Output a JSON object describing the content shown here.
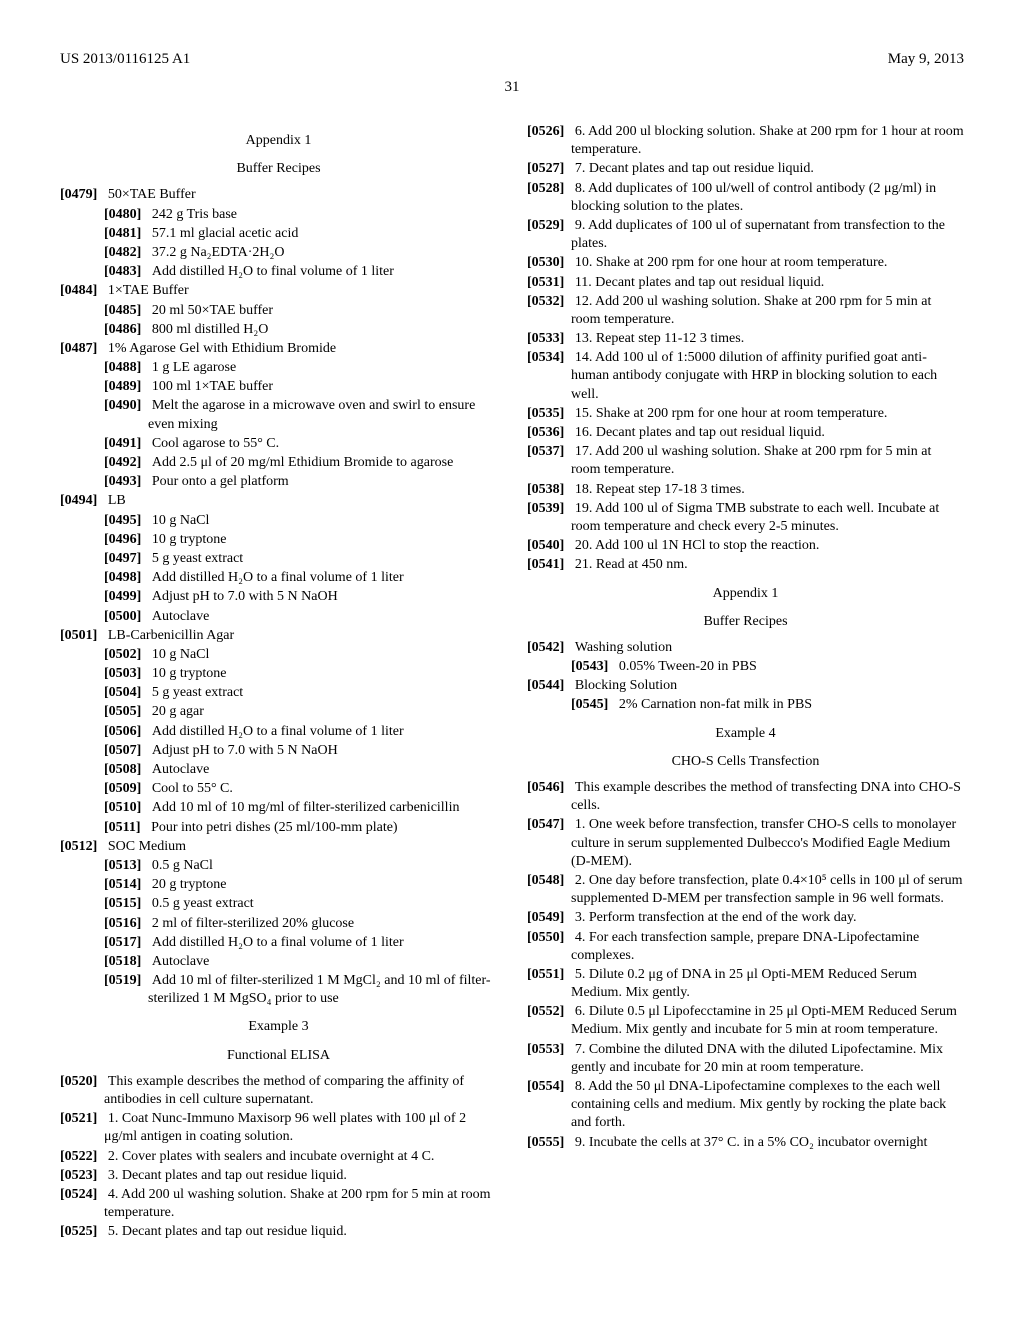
{
  "header": {
    "docNumber": "US 2013/0116125 A1",
    "date": "May 9, 2013",
    "pageNumber": "31"
  },
  "left": {
    "appendixTitle": "Appendix 1",
    "appendixSub": "Buffer Recipes",
    "p0479": {
      "ref": "[0479]",
      "text": "50×TAE Buffer"
    },
    "p0480": {
      "ref": "[0480]",
      "text": "242 g Tris base"
    },
    "p0481": {
      "ref": "[0481]",
      "text": "57.1 ml glacial acetic acid"
    },
    "p0482": {
      "ref": "[0482]",
      "text": "37.2 g Na₂EDTA·2H₂O"
    },
    "p0483": {
      "ref": "[0483]",
      "text": "Add distilled H₂O to final volume of 1 liter"
    },
    "p0484": {
      "ref": "[0484]",
      "text": "1×TAE Buffer"
    },
    "p0485": {
      "ref": "[0485]",
      "text": "20 ml 50×TAE buffer"
    },
    "p0486": {
      "ref": "[0486]",
      "text": "800 ml distilled H₂O"
    },
    "p0487": {
      "ref": "[0487]",
      "text": "1% Agarose Gel with Ethidium Bromide"
    },
    "p0488": {
      "ref": "[0488]",
      "text": "1 g LE agarose"
    },
    "p0489": {
      "ref": "[0489]",
      "text": "100 ml 1×TAE buffer"
    },
    "p0490": {
      "ref": "[0490]",
      "text": "Melt the agarose in a microwave oven and swirl to ensure even mixing"
    },
    "p0491": {
      "ref": "[0491]",
      "text": "Cool agarose to 55° C."
    },
    "p0492": {
      "ref": "[0492]",
      "text": "Add 2.5 μl of 20 mg/ml Ethidium Bromide to agarose"
    },
    "p0493": {
      "ref": "[0493]",
      "text": "Pour onto a gel platform"
    },
    "p0494": {
      "ref": "[0494]",
      "text": "LB"
    },
    "p0495": {
      "ref": "[0495]",
      "text": "10 g NaCl"
    },
    "p0496": {
      "ref": "[0496]",
      "text": "10 g tryptone"
    },
    "p0497": {
      "ref": "[0497]",
      "text": "5 g yeast extract"
    },
    "p0498": {
      "ref": "[0498]",
      "text": "Add distilled H₂O to a final volume of 1 liter"
    },
    "p0499": {
      "ref": "[0499]",
      "text": "Adjust pH to 7.0 with 5 N NaOH"
    },
    "p0500": {
      "ref": "[0500]",
      "text": "Autoclave"
    },
    "p0501": {
      "ref": "[0501]",
      "text": "LB-Carbenicillin Agar"
    },
    "p0502": {
      "ref": "[0502]",
      "text": "10 g NaCl"
    },
    "p0503": {
      "ref": "[0503]",
      "text": "10 g tryptone"
    },
    "p0504": {
      "ref": "[0504]",
      "text": "5 g yeast extract"
    },
    "p0505": {
      "ref": "[0505]",
      "text": "20 g agar"
    },
    "p0506": {
      "ref": "[0506]",
      "text": "Add distilled H₂O to a final volume of 1 liter"
    },
    "p0507": {
      "ref": "[0507]",
      "text": "Adjust pH to 7.0 with 5 N NaOH"
    },
    "p0508": {
      "ref": "[0508]",
      "text": "Autoclave"
    },
    "p0509": {
      "ref": "[0509]",
      "text": "Cool to 55° C."
    },
    "p0510": {
      "ref": "[0510]",
      "text": "Add 10 ml of 10 mg/ml of filter-sterilized carbenicillin"
    },
    "p0511": {
      "ref": "[0511]",
      "text": "Pour into petri dishes (25 ml/100-mm plate)"
    },
    "p0512": {
      "ref": "[0512]",
      "text": "SOC Medium"
    },
    "p0513": {
      "ref": "[0513]",
      "text": "0.5 g NaCl"
    },
    "p0514": {
      "ref": "[0514]",
      "text": "20 g tryptone"
    },
    "p0515": {
      "ref": "[0515]",
      "text": "0.5 g yeast extract"
    },
    "p0516": {
      "ref": "[0516]",
      "text": "2 ml of filter-sterilized 20% glucose"
    },
    "p0517": {
      "ref": "[0517]",
      "text": "Add distilled H₂O to a final volume of 1 liter"
    },
    "p0518": {
      "ref": "[0518]",
      "text": "Autoclave"
    },
    "p0519": {
      "ref": "[0519]",
      "text": "Add 10 ml of filter-sterilized 1 M MgCl₂ and 10 ml of filter-sterilized 1 M MgSO₄ prior to use"
    },
    "ex3Title": "Example 3",
    "ex3Sub": "Functional ELISA",
    "p0520": {
      "ref": "[0520]",
      "text": "This example describes the method of comparing the affinity of antibodies in cell culture supernatant."
    },
    "p0521": {
      "ref": "[0521]",
      "text": "1. Coat Nunc-Immuno Maxisorp 96 well plates with 100 μl of 2 μg/ml antigen in coating solution."
    },
    "p0522": {
      "ref": "[0522]",
      "text": "2. Cover plates with sealers and incubate overnight at 4 C."
    },
    "p0523": {
      "ref": "[0523]",
      "text": "3. Decant plates and tap out residue liquid."
    },
    "p0524": {
      "ref": "[0524]",
      "text": "4. Add 200 ul washing solution. Shake at 200 rpm for 5 min at room temperature."
    },
    "p0525": {
      "ref": "[0525]",
      "text": "5. Decant plates and tap out residue liquid."
    }
  },
  "right": {
    "p0526": {
      "ref": "[0526]",
      "text": "6. Add 200 ul blocking solution. Shake at 200 rpm for 1 hour at room temperature."
    },
    "p0527": {
      "ref": "[0527]",
      "text": "7. Decant plates and tap out residue liquid."
    },
    "p0528": {
      "ref": "[0528]",
      "text": "8. Add duplicates of 100 ul/well of control antibody (2 μg/ml) in blocking solution to the plates."
    },
    "p0529": {
      "ref": "[0529]",
      "text": "9. Add duplicates of 100 ul of supernatant from transfection to the plates."
    },
    "p0530": {
      "ref": "[0530]",
      "text": "10. Shake at 200 rpm for one hour at room temperature."
    },
    "p0531": {
      "ref": "[0531]",
      "text": "11. Decant plates and tap out residual liquid."
    },
    "p0532": {
      "ref": "[0532]",
      "text": "12. Add 200 ul washing solution. Shake at 200 rpm for 5 min at room temperature."
    },
    "p0533": {
      "ref": "[0533]",
      "text": "13. Repeat step 11-12 3 times."
    },
    "p0534": {
      "ref": "[0534]",
      "text": "14. Add 100 ul of 1:5000 dilution of affinity purified goat anti-human antibody conjugate with HRP in blocking solution to each well."
    },
    "p0535": {
      "ref": "[0535]",
      "text": "15. Shake at 200 rpm for one hour at room temperature."
    },
    "p0536": {
      "ref": "[0536]",
      "text": "16. Decant plates and tap out residual liquid."
    },
    "p0537": {
      "ref": "[0537]",
      "text": "17. Add 200 ul washing solution. Shake at 200 rpm for 5 min at room temperature."
    },
    "p0538": {
      "ref": "[0538]",
      "text": "18. Repeat step 17-18 3 times."
    },
    "p0539": {
      "ref": "[0539]",
      "text": "19. Add 100 ul of Sigma TMB substrate to each well. Incubate at room temperature and check every 2-5 minutes."
    },
    "p0540": {
      "ref": "[0540]",
      "text": "20. Add 100 ul 1N HCl to stop the reaction."
    },
    "p0541": {
      "ref": "[0541]",
      "text": "21. Read at 450 nm."
    },
    "appendixTitle": "Appendix 1",
    "appendixSub": "Buffer Recipes",
    "p0542": {
      "ref": "[0542]",
      "text": "Washing solution"
    },
    "p0543": {
      "ref": "[0543]",
      "text": "0.05% Tween-20 in PBS"
    },
    "p0544": {
      "ref": "[0544]",
      "text": "Blocking Solution"
    },
    "p0545": {
      "ref": "[0545]",
      "text": "2% Carnation non-fat milk in PBS"
    },
    "ex4Title": "Example 4",
    "ex4Sub": "CHO-S Cells Transfection",
    "p0546": {
      "ref": "[0546]",
      "text": "This example describes the method of transfecting DNA into CHO-S cells."
    },
    "p0547": {
      "ref": "[0547]",
      "text": "1. One week before transfection, transfer CHO-S cells to monolayer culture in serum supplemented Dulbecco's Modified Eagle Medium (D-MEM)."
    },
    "p0548": {
      "ref": "[0548]",
      "text": "2. One day before transfection, plate 0.4×10⁵ cells in 100 μl of serum supplemented D-MEM per transfection sample in 96 well formats."
    },
    "p0549": {
      "ref": "[0549]",
      "text": "3. Perform transfection at the end of the work day."
    },
    "p0550": {
      "ref": "[0550]",
      "text": "4. For each transfection sample, prepare DNA-Lipofectamine complexes."
    },
    "p0551": {
      "ref": "[0551]",
      "text": "5. Dilute 0.2 μg of DNA in 25 μl Opti-MEM Reduced Serum Medium. Mix gently."
    },
    "p0552": {
      "ref": "[0552]",
      "text": "6. Dilute 0.5 μl Lipofecctamine in 25 μl Opti-MEM Reduced Serum Medium. Mix gently and incubate for 5 min at room temperature."
    },
    "p0553": {
      "ref": "[0553]",
      "text": "7. Combine the diluted DNA with the diluted Lipofectamine. Mix gently and incubate for 20 min at room temperature."
    },
    "p0554": {
      "ref": "[0554]",
      "text": "8. Add the 50 μl DNA-Lipofectamine complexes to the each well containing cells and medium. Mix gently by rocking the plate back and forth."
    },
    "p0555": {
      "ref": "[0555]",
      "text": "9. Incubate the cells at 37° C. in a 5% CO₂ incubator overnight"
    }
  }
}
